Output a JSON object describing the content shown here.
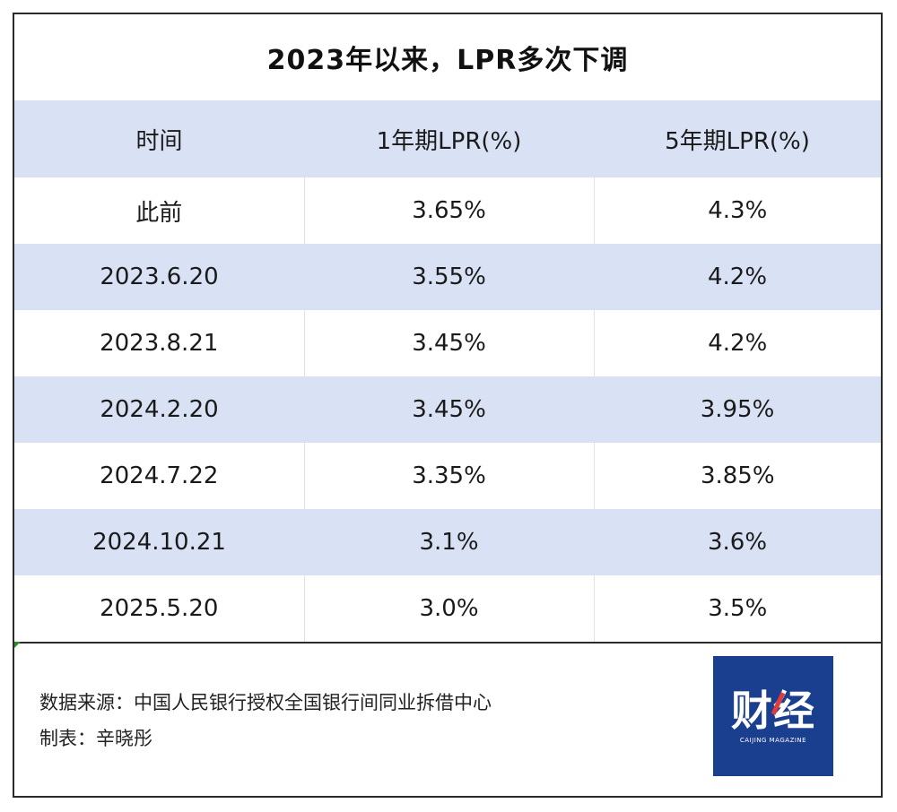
{
  "chart_data": {
    "type": "table",
    "title": "2023年以来，LPR多次下调",
    "columns": [
      "时间",
      "1年期LPR(%)",
      "5年期LPR(%)"
    ],
    "rows": [
      [
        "此前",
        "3.65%",
        "4.3%"
      ],
      [
        "2023.6.20",
        "3.55%",
        "4.2%"
      ],
      [
        "2023.8.21",
        "3.45%",
        "4.2%"
      ],
      [
        "2024.2.20",
        "3.45%",
        "3.95%"
      ],
      [
        "2024.7.22",
        "3.35%",
        "3.85%"
      ],
      [
        "2024.10.21",
        "3.1%",
        "3.6%"
      ],
      [
        "2025.5.20",
        "3.0%",
        "3.5%"
      ]
    ],
    "row_bands": [
      "plain",
      "band",
      "plain",
      "band",
      "plain",
      "band",
      "plain"
    ],
    "band_color": "#d9e1f4"
  },
  "footer": {
    "source": "数据来源：中国人民银行授权全国银行间同业拆借中心",
    "maker": "制表：辛晓彤"
  },
  "logo": {
    "mark": "财经",
    "sub": "CAIJING MAGAZINE",
    "bg_color": "#1a3f8f",
    "accent_color": "#e23b3b"
  }
}
